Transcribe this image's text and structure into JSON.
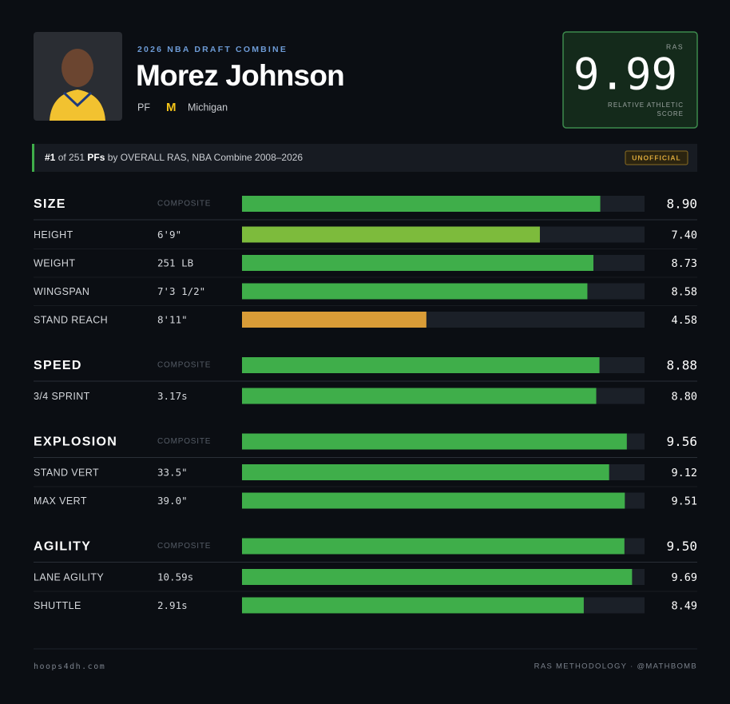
{
  "header": {
    "event": "2026 NBA DRAFT COMBINE",
    "name": "Morez Johnson",
    "position": "PF",
    "logo": "M",
    "school": "Michigan"
  },
  "ras": {
    "label": "RAS",
    "value": 9.99,
    "caption": [
      "RELATIVE ATHLETIC",
      "SCORE"
    ]
  },
  "rank": {
    "parts": [
      "#1",
      " of 251 ",
      "PFs",
      " by OVERALL RAS, NBA Combine 2008–2026"
    ],
    "badge": "UNOFFICIAL"
  },
  "xlim": [
    0,
    10
  ],
  "sections": [
    {
      "name": "SIZE",
      "composite_label": "COMPOSITE",
      "value": 8.9,
      "value_label": "8.90",
      "color": "#3fae4a",
      "rows": [
        {
          "label": "HEIGHT",
          "measure": "6'9\"",
          "value": 7.4,
          "value_label": "7.40",
          "color": "#7dbb3c"
        },
        {
          "label": "WEIGHT",
          "measure": "251 LB",
          "value": 8.73,
          "color": "#3fae4a"
        },
        {
          "label": "WINGSPAN",
          "measure": "7'3 1/2\"",
          "value": 8.58,
          "color": "#3fae4a"
        },
        {
          "label": "STAND REACH",
          "measure": "8'11\"",
          "value": 4.58,
          "color": "#d99c37"
        }
      ]
    },
    {
      "name": "SPEED",
      "composite_label": "COMPOSITE",
      "value": 8.88,
      "color": "#3fae4a",
      "rows": [
        {
          "label": "3/4 SPRINT",
          "measure": "3.17s",
          "value": 8.8,
          "value_label": "8.80",
          "color": "#3fae4a"
        }
      ]
    },
    {
      "name": "EXPLOSION",
      "composite_label": "COMPOSITE",
      "value": 9.56,
      "color": "#3fae4a",
      "rows": [
        {
          "label": "STAND VERT",
          "measure": "33.5\"",
          "value": 9.12,
          "color": "#3fae4a"
        },
        {
          "label": "MAX VERT",
          "measure": "39.0\"",
          "value": 9.51,
          "color": "#3fae4a"
        }
      ]
    },
    {
      "name": "AGILITY",
      "composite_label": "COMPOSITE",
      "value": 9.5,
      "value_label": "9.50",
      "color": "#3fae4a",
      "rows": [
        {
          "label": "LANE AGILITY",
          "measure": "10.59s",
          "value": 9.69,
          "color": "#3fae4a"
        },
        {
          "label": "SHUTTLE",
          "measure": "2.91s",
          "value": 8.49,
          "color": "#3fae4a"
        }
      ]
    }
  ],
  "footer": {
    "left": "hoops4dh.com",
    "right": "RAS METHODOLOGY · @MATHBOMB"
  }
}
